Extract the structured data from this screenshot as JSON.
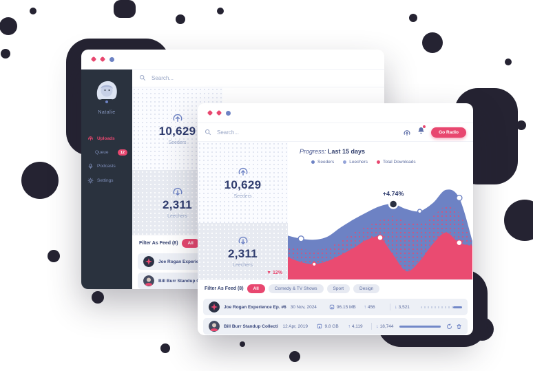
{
  "colors": {
    "accent_pink": "#e8476f",
    "accent_blue": "#6d82c4",
    "navy": "#2f3c6e",
    "blob": "#252332"
  },
  "back_window": {
    "profile": {
      "name": "Natalie"
    },
    "nav": [
      {
        "label": "Uploads",
        "active": true
      },
      {
        "label": "Queue",
        "badge": "12"
      },
      {
        "label": "Podcasts"
      },
      {
        "label": "Settings"
      }
    ],
    "search_placeholder": "Search...",
    "stats": [
      {
        "value": "10,629",
        "label": "Seeders"
      },
      {
        "value": "2,311",
        "label": "Leechers"
      }
    ],
    "filter_label": "Filter As Feed (8)",
    "chips": [
      {
        "label": "All",
        "active": true
      },
      {
        "label": "Comedy & TV Shows",
        "active": false
      }
    ],
    "rows": [
      {
        "title": "Joe Rogan Experience Ep. #68"
      },
      {
        "title": "Bill Burr Standup Collective"
      }
    ]
  },
  "front_window": {
    "search_placeholder": "Search...",
    "cta_label": "Go Radio",
    "notification_dot": true,
    "stats": [
      {
        "value": "10,629",
        "label": "Seeders"
      },
      {
        "value": "2,311",
        "label": "Leechers",
        "delta": "▼ 12%"
      }
    ],
    "progress_title_prefix": "Progress:",
    "progress_title_range": "Last 15 days",
    "filter_label": "Filter As Feed (8)",
    "chips": [
      {
        "label": "All",
        "active": true
      },
      {
        "label": "Comedy & TV Shows",
        "active": false
      },
      {
        "label": "Sport",
        "active": false
      },
      {
        "label": "Design",
        "active": false
      }
    ],
    "rows": [
      {
        "title": "Joe Rogan Experience Ep. #68",
        "date": "30 Nov, 2024",
        "size": "96.15 MB",
        "up": "456",
        "down": "3,521",
        "progress": 22
      },
      {
        "title": "Bill Burr Standup Collective",
        "date": "12 Apr, 2019",
        "size": "9.8 GB",
        "up": "4,119",
        "down": "18,744",
        "progress": 100
      }
    ]
  },
  "chart_data": {
    "type": "area",
    "title": "Progress: Last 15 days",
    "xlabel": "",
    "ylabel": "",
    "x": [
      1,
      2,
      3,
      4,
      5,
      6,
      7,
      8,
      9,
      10,
      11,
      12,
      13,
      14,
      15
    ],
    "ylim": [
      0,
      100
    ],
    "grid": false,
    "legend_position": "top-left",
    "series": [
      {
        "name": "Seeders",
        "color": "#6d82c4",
        "fill": "solid",
        "values": [
          43,
          40,
          39,
          42,
          51,
          59,
          66,
          72,
          74,
          69,
          67,
          75,
          88,
          80,
          38
        ]
      },
      {
        "name": "Leechers",
        "color": "#93a3d8",
        "fill": "pink-dots",
        "values": [
          33,
          30,
          29,
          31,
          38,
          46,
          52,
          58,
          62,
          57,
          55,
          62,
          72,
          65,
          35
        ]
      },
      {
        "name": "Total Downloads",
        "color": "#ea4b71",
        "fill": "solid",
        "values": [
          22,
          17,
          15,
          18,
          24,
          31,
          39,
          41,
          24,
          8,
          18,
          35,
          46,
          36,
          33
        ]
      }
    ],
    "legend": [
      {
        "label": "Seeders",
        "color": "#6d82c4"
      },
      {
        "label": "Leechers",
        "color": "#93a3d8"
      },
      {
        "label": "Total Downloads",
        "color": "#e8476f"
      }
    ],
    "annotation": {
      "text": "+4.74%",
      "series": 0,
      "index": 8
    },
    "markers": [
      {
        "series": 0,
        "index": 1,
        "style": "ring"
      },
      {
        "series": 0,
        "index": 8,
        "style": "dark"
      },
      {
        "series": 0,
        "index": 10,
        "style": "ring-sm"
      },
      {
        "series": 0,
        "index": 13,
        "style": "ring"
      },
      {
        "series": 2,
        "index": 2,
        "style": "ring-sm"
      },
      {
        "series": 2,
        "index": 7,
        "style": "ring"
      },
      {
        "series": 2,
        "index": 13,
        "style": "ring"
      }
    ]
  }
}
